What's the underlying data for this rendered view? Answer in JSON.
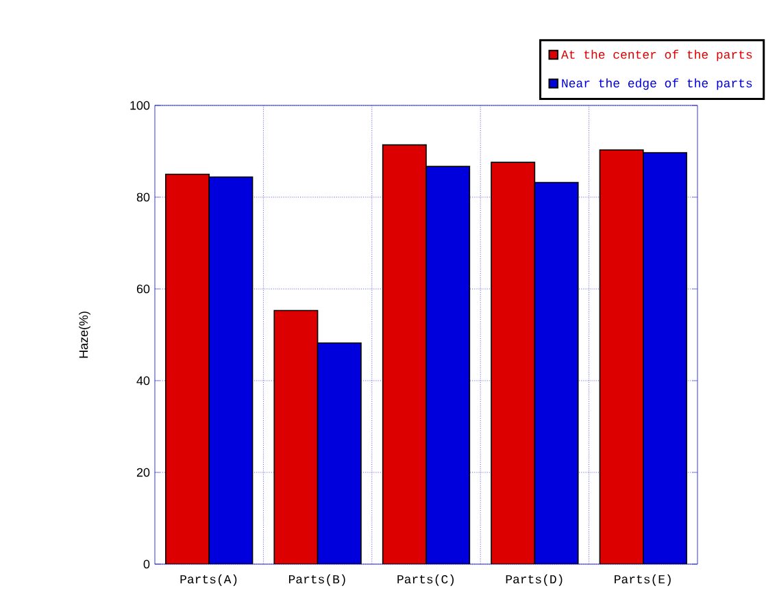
{
  "chart_data": {
    "type": "bar",
    "ylabel": "Haze(%)",
    "categories": [
      "Parts(A)",
      "Parts(B)",
      "Parts(C)",
      "Parts(D)",
      "Parts(E)"
    ],
    "series": [
      {
        "name": "At the center of the parts",
        "color": "#dd0000",
        "values": [
          85,
          55.3,
          91.4,
          87.6,
          90.3
        ]
      },
      {
        "name": "Near the edge of the parts",
        "color": "#0000dd",
        "values": [
          84.4,
          48.2,
          86.7,
          83.2,
          89.7
        ]
      }
    ],
    "ylim": [
      0,
      100
    ],
    "yticks": [
      0,
      20,
      40,
      60,
      80,
      100
    ],
    "grid": true,
    "legend": "top right"
  }
}
